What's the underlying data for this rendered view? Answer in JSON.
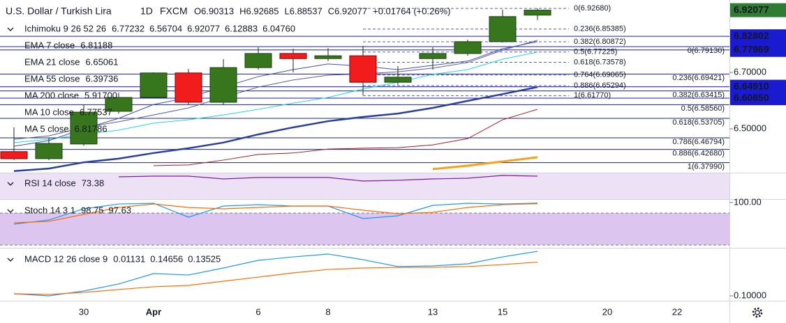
{
  "header": {
    "symbol": "U.S. Dollar / Turkish Lira",
    "interval": "1D",
    "exchange": "FXCM",
    "ohlc": [
      "O6.90313",
      "H6.92685",
      "L6.88537",
      "C6.92077"
    ],
    "change": "+0.01764 (+0.26%)"
  },
  "chart_data": [
    {
      "type": "candlestick",
      "categories": [
        null,
        null,
        "30",
        null,
        "Apr",
        null,
        null,
        "6",
        null,
        "8",
        null,
        null,
        "13",
        null,
        "15",
        null,
        null,
        "20",
        null,
        "22"
      ],
      "open": [
        6.419,
        6.394,
        6.446,
        6.562,
        6.611,
        6.698,
        6.594,
        6.717,
        6.767,
        6.749,
        6.759,
        6.665,
        6.749,
        6.767,
        6.809,
        6.90313,
        null,
        null,
        null,
        null
      ],
      "high": [
        6.505,
        6.468,
        6.586,
        6.628,
        6.7,
        6.712,
        6.747,
        6.789,
        6.784,
        6.786,
        6.794,
        6.722,
        6.789,
        6.816,
        6.922,
        6.92685,
        null,
        null,
        null,
        null
      ],
      "low": [
        6.389,
        6.389,
        6.44,
        6.554,
        6.608,
        6.586,
        6.586,
        6.71,
        6.7,
        6.74,
        6.619,
        6.656,
        6.71,
        6.759,
        6.806,
        6.88537,
        null,
        null,
        null,
        null
      ],
      "close": [
        6.394,
        6.448,
        6.559,
        6.611,
        6.698,
        6.594,
        6.717,
        6.767,
        6.749,
        6.759,
        6.665,
        6.683,
        6.767,
        6.809,
        6.898,
        6.92077,
        null,
        null,
        null,
        null
      ],
      "up_color": "#38761d",
      "down_color": "#f21c1c",
      "ylim": [
        6.3444,
        6.9568
      ],
      "yticks": [
        {
          "value": 6.5,
          "label": "6.50000"
        },
        {
          "value": 6.7,
          "label": "6.70000"
        }
      ],
      "series": [
        {
          "color": "#a61c1c",
          "width": 1,
          "values": [
            null,
            null,
            null,
            null,
            6.369,
            6.372,
            6.389,
            6.409,
            6.414,
            6.428,
            6.431,
            6.433,
            6.443,
            6.465,
            6.532,
            6.569,
            null,
            null,
            null,
            null
          ]
        },
        {
          "color": "#2a3f9d",
          "width": 2.5,
          "values": [
            6.35,
            6.359,
            6.381,
            6.394,
            6.414,
            6.431,
            6.451,
            6.48,
            6.505,
            6.527,
            6.542,
            6.554,
            6.574,
            6.599,
            6.623,
            6.648,
            null,
            null,
            null,
            null
          ]
        },
        {
          "color": "#f7a21b",
          "width": 3,
          "values": [
            null,
            null,
            null,
            null,
            null,
            null,
            null,
            null,
            null,
            null,
            null,
            null,
            6.357,
            6.369,
            6.384,
            6.399,
            null,
            null,
            null,
            null
          ]
        },
        {
          "color": "#1fd8ea",
          "width": 1,
          "values": [
            6.451,
            6.463,
            6.48,
            6.495,
            6.52,
            6.532,
            6.549,
            6.569,
            6.591,
            6.611,
            6.641,
            6.665,
            6.693,
            6.71,
            6.747,
            6.772,
            null,
            null,
            null,
            null
          ]
        },
        {
          "color": "#3f51b5",
          "width": 1,
          "values": [
            6.438,
            6.458,
            6.5,
            6.537,
            6.586,
            6.611,
            6.648,
            6.685,
            6.71,
            6.73,
            6.722,
            6.71,
            6.725,
            6.74,
            6.784,
            6.809,
            null,
            null,
            null,
            null
          ]
        },
        {
          "color": "#5a5a9e",
          "width": 1,
          "values": [
            6.463,
            6.475,
            6.505,
            6.525,
            6.549,
            6.574,
            6.611,
            6.648,
            6.673,
            6.69,
            6.695,
            6.702,
            6.715,
            6.735,
            6.779,
            6.814,
            null,
            null,
            null,
            null
          ]
        }
      ],
      "legend": [
        {
          "name": "Ichimoku 9 26 52 26",
          "values": [
            {
              "text": "6.77232",
              "color": "#2196f3"
            },
            {
              "text": "6.56704",
              "color": "#c62828"
            },
            {
              "text": "6.92077",
              "color": "#43a047"
            },
            {
              "text": "6.12883",
              "color": "#43a047"
            },
            {
              "text": "6.04760",
              "color": "#c62828"
            }
          ]
        },
        {
          "name": "EMA 7 close",
          "values": [
            {
              "text": "6.81188",
              "color": "#3a6fc4"
            }
          ]
        },
        {
          "name": "EMA 21 close",
          "values": [
            {
              "text": "6.65061",
              "color": "#2a3f9d"
            }
          ]
        },
        {
          "name": "EMA 55 close",
          "values": [
            {
              "text": "6.39736",
              "color": "#f7a21b"
            }
          ]
        },
        {
          "name": "MA 200 close",
          "values": [
            {
              "text": "5.91700",
              "color": "#c62828"
            }
          ]
        },
        {
          "name": "MA 10 close",
          "values": [
            {
              "text": "6.77537",
              "color": "#1fd8ea"
            }
          ]
        },
        {
          "name": "MA 5 close",
          "values": [
            {
              "text": "6.81786",
              "color": "#3f51b5"
            }
          ]
        }
      ],
      "price_lines": [
        {
          "value": 6.82802,
          "label": "6.82802",
          "color": "#1a1ad0"
        },
        {
          "value": 6.77969,
          "label": "6.77969",
          "color": "#1a1ad0"
        },
        {
          "value": 6.6491,
          "label": "6.64910",
          "color": "#1a1ad0"
        },
        {
          "value": 6.6085,
          "label": "6.60850",
          "color": "#1a1ad0"
        }
      ],
      "last_price": {
        "value": 6.92077,
        "label": "6.92077",
        "color": "#2e7d32"
      },
      "fib_retracements": [
        {
          "style": "dashed",
          "color": "#5c5cb8",
          "levels": [
            {
              "label": "0(6.92680)",
              "value": 6.9268
            },
            {
              "label": "0.236(6.85385)",
              "value": 6.85385
            },
            {
              "label": "0.382(6.80872)",
              "value": 6.80872
            },
            {
              "label": "0.5(6.77225)",
              "value": 6.77225
            },
            {
              "label": "0.618(6.73578)",
              "value": 6.73578
            },
            {
              "label": "0.764(6.69065)",
              "value": 6.69065
            },
            {
              "label": "0.886(6.65294)",
              "value": 6.65294
            },
            {
              "label": "1(6.61770)",
              "value": 6.6177
            }
          ]
        },
        {
          "style": "solid",
          "color": "#1a237e",
          "levels": [
            {
              "label": "0(6.79130)",
              "value": 6.7913
            },
            {
              "label": "0.236(6.69421)",
              "value": 6.69421
            },
            {
              "label": "0.382(6.63415)",
              "value": 6.63415
            },
            {
              "label": "0.5(6.58560)",
              "value": 6.5856
            },
            {
              "label": "0.618(6.53705)",
              "value": 6.53705
            },
            {
              "label": "0.786(6.46794)",
              "value": 6.46794
            },
            {
              "label": "0.886(6.42680)",
              "value": 6.4268
            },
            {
              "label": "1(6.37990)",
              "value": 6.3799
            }
          ]
        }
      ]
    },
    {
      "type": "line",
      "ylim": [
        60,
        75
      ],
      "yticks": [],
      "series": [
        {
          "color": "#7b1fa2",
          "width": 1.2,
          "values": [
            null,
            null,
            null,
            72.97,
            73.38,
            73.38,
            71.76,
            72.57,
            72.57,
            72.57,
            70.54,
            70.95,
            71.76,
            72.16,
            73.78,
            73.38,
            null,
            null,
            null,
            null
          ]
        }
      ],
      "legend": [
        {
          "name": "RSI 14 close",
          "values": [
            {
              "text": "73.38",
              "color": "#7b1fa2"
            }
          ]
        }
      ]
    },
    {
      "type": "line",
      "ylim": [
        16,
        105
      ],
      "yticks": [
        {
          "value": 100,
          "label": "100.00"
        }
      ],
      "band": [
        20,
        80
      ],
      "series": [
        {
          "color": "#2196f3",
          "width": 1.2,
          "values": [
            59.2,
            67,
            88,
            97.1,
            98.5,
            72.3,
            93.2,
            95.8,
            93.2,
            93.2,
            69.7,
            74.9,
            94.5,
            98.5,
            97.1,
            98.75,
            null,
            null,
            null,
            null
          ]
        },
        {
          "color": "#ff6d00",
          "width": 1.2,
          "values": [
            61.8,
            64.4,
            77.5,
            90.6,
            97.1,
            90.6,
            88,
            90.6,
            93.2,
            93.2,
            85.4,
            78.8,
            81.4,
            90.6,
            95.8,
            97.63,
            null,
            null,
            null,
            null
          ]
        }
      ],
      "legend": [
        {
          "name": "Stoch 14 3 1",
          "values": [
            {
              "text": "98.75",
              "color": "#2196f3"
            },
            {
              "text": "97.63",
              "color": "#ff6d00"
            }
          ]
        }
      ]
    },
    {
      "type": "line",
      "ylim": [
        0.0949,
        0.1495
      ],
      "yticks": [
        {
          "value": 0.1,
          "label": "0.10000"
        }
      ],
      "series": [
        {
          "color": "#2196f3",
          "width": 1.2,
          "values": [
            0.1022,
            0.1,
            0.1051,
            0.1124,
            0.1233,
            0.1218,
            0.1291,
            0.1371,
            0.1407,
            0.1437,
            0.1378,
            0.1306,
            0.1313,
            0.1335,
            0.1407,
            0.14656,
            null,
            null,
            null,
            null
          ]
        },
        {
          "color": "#ff6d00",
          "width": 1.2,
          "values": [
            0.1022,
            0.1015,
            0.1036,
            0.1066,
            0.1095,
            0.1109,
            0.1153,
            0.1196,
            0.124,
            0.1276,
            0.1291,
            0.1298,
            0.1298,
            0.1306,
            0.1327,
            0.13525,
            null,
            null,
            null,
            null
          ]
        }
      ],
      "legend": [
        {
          "name": "MACD 12 26 close 9",
          "values": [
            {
              "text": "0.01131",
              "color": "#26a69a"
            },
            {
              "text": "0.14656",
              "color": "#2196f3"
            },
            {
              "text": "0.13525",
              "color": "#ff6d00"
            }
          ]
        }
      ]
    }
  ]
}
